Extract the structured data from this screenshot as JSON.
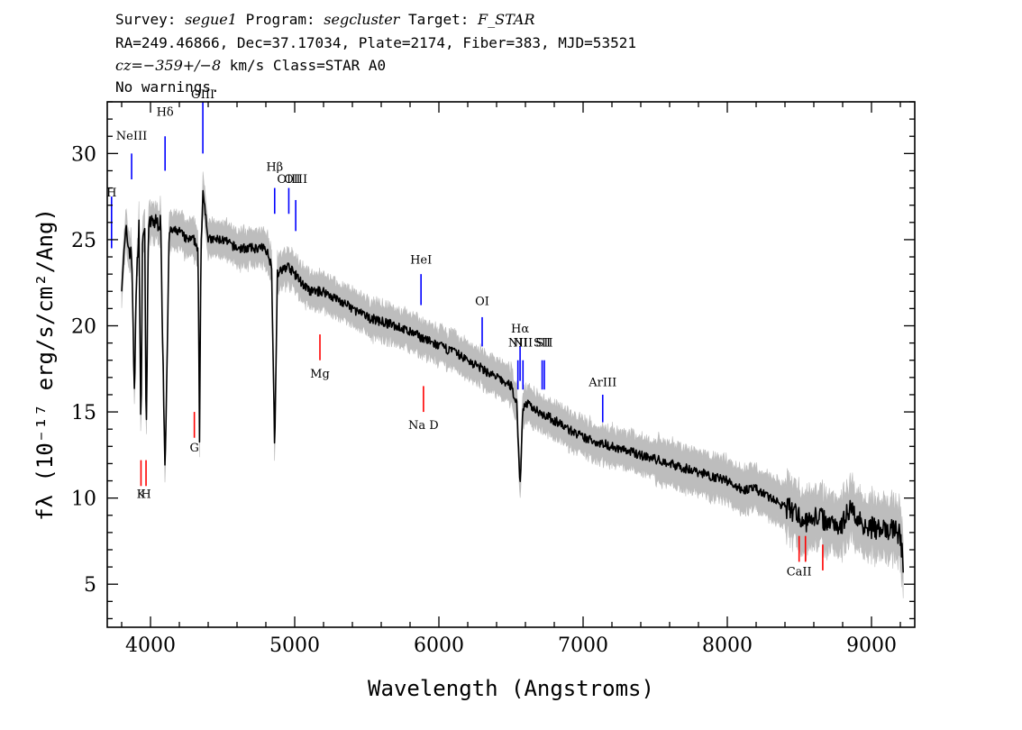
{
  "header": {
    "line1_prefix": "Survey: ",
    "survey": "segue1",
    "line1_mid": " Program: ",
    "program": "segcluster",
    "line1_mid2": " Target: ",
    "target": "F_STAR",
    "line2": "RA=249.46866, Dec=37.17034, Plate=2174, Fiber=383, MJD=53521",
    "cz": "cz=−359+/−8",
    "line3_suffix": " km/s Class=STAR A0",
    "line4": "No warnings."
  },
  "chart_data": {
    "type": "line",
    "xlabel": "Wavelength (Angstroms)",
    "ylabel": "fλ (10⁻¹⁷ erg/s/cm²/Ang)",
    "xlim": [
      3700,
      9300
    ],
    "ylim": [
      2.5,
      33.0
    ],
    "x_ticks": [
      4000,
      5000,
      6000,
      7000,
      8000,
      9000
    ],
    "y_ticks": [
      5,
      10,
      15,
      20,
      25,
      30
    ],
    "series": [
      {
        "role": "flux",
        "color": "#000000",
        "x": [
          3800,
          3830,
          3850,
          3870,
          3880,
          3889,
          3900,
          3920,
          3933,
          3945,
          3960,
          3970,
          3985,
          4000,
          4030,
          4070,
          4101,
          4130,
          4200,
          4250,
          4300,
          4330,
          4340,
          4350,
          4365,
          4400,
          4500,
          4600,
          4700,
          4800,
          4840,
          4861,
          4880,
          4950,
          5000,
          5100,
          5200,
          5300,
          5400,
          5500,
          5700,
          5890,
          5950,
          6100,
          6300,
          6400,
          6500,
          6540,
          6563,
          6580,
          6600,
          6700,
          6800,
          6900,
          7000,
          7200,
          7400,
          7600,
          7800,
          8000,
          8100,
          8200,
          8300,
          8400,
          8500,
          8542,
          8600,
          8662,
          8700,
          8800,
          8850,
          8900,
          8950,
          9000,
          9050,
          9100,
          9150,
          9180,
          9200,
          9220
        ],
        "y": [
          22.5,
          25.5,
          24.5,
          24.0,
          20.0,
          15.5,
          22.0,
          26.0,
          13.5,
          25.5,
          25.5,
          13.2,
          25.5,
          26.0,
          26.0,
          26.0,
          11.5,
          25.5,
          25.5,
          25.0,
          25.0,
          24.5,
          13.0,
          24.5,
          28.0,
          25.0,
          25.0,
          24.5,
          24.5,
          24.5,
          23.5,
          12.8,
          23.0,
          23.5,
          23.0,
          22.0,
          22.0,
          21.5,
          21.0,
          20.5,
          20.0,
          19.3,
          19.0,
          18.5,
          17.5,
          17.0,
          16.5,
          15.5,
          10.5,
          15.0,
          15.5,
          15.0,
          14.5,
          14.0,
          13.5,
          13.0,
          12.5,
          12.0,
          11.5,
          11.0,
          10.5,
          10.5,
          10.0,
          9.5,
          9.0,
          8.5,
          9.0,
          8.8,
          8.6,
          8.5,
          9.5,
          8.8,
          8.5,
          8.3,
          8.2,
          8.0,
          8.3,
          8.0,
          7.8,
          6.0
        ]
      }
    ],
    "line_markers": [
      {
        "label": "H",
        "x": 3730,
        "y_base": 24.5,
        "y_top": 27.5,
        "color": "#0000ff",
        "label_y": 27.5
      },
      {
        "label": "NeIII",
        "x": 3869,
        "y_base": 28.5,
        "y_top": 30.0,
        "color": "#0000ff",
        "label_y": 30.8
      },
      {
        "label": "Hδ",
        "x": 4101,
        "y_base": 29.0,
        "y_top": 31.0,
        "color": "#0000ff",
        "label_y": 32.2
      },
      {
        "label": "OIII",
        "x": 4363,
        "y_base": 30.0,
        "y_top": 33.0,
        "color": "#0000ff",
        "label_y": 33.2
      },
      {
        "label": "Hβ",
        "x": 4861,
        "y_base": 26.5,
        "y_top": 28.0,
        "color": "#0000ff",
        "label_y": 29.0
      },
      {
        "label": "OIII",
        "x": 4959,
        "y_base": 26.5,
        "y_top": 28.0,
        "color": "#0000ff",
        "label_y": 28.3
      },
      {
        "label": "OIII",
        "x": 5007,
        "y_base": 25.5,
        "y_top": 27.3,
        "color": "#0000ff",
        "label_y": 28.3
      },
      {
        "label": "HeI",
        "x": 5876,
        "y_base": 21.2,
        "y_top": 23.0,
        "color": "#0000ff",
        "label_y": 23.6
      },
      {
        "label": "OI",
        "x": 6300,
        "y_base": 18.8,
        "y_top": 20.5,
        "color": "#0000ff",
        "label_y": 21.2
      },
      {
        "label": "NII",
        "x": 6548,
        "y_base": 16.3,
        "y_top": 18.0,
        "color": "#0000ff",
        "label_y": 18.8
      },
      {
        "label": "Hα",
        "x": 6563,
        "y_base": 16.8,
        "y_top": 18.8,
        "color": "#0000ff",
        "label_y": 19.6
      },
      {
        "label": "NII",
        "x": 6583,
        "y_base": 16.3,
        "y_top": 18.0,
        "color": "#0000ff",
        "label_y": 18.8
      },
      {
        "label": "SII",
        "x": 6716,
        "y_base": 16.3,
        "y_top": 18.0,
        "color": "#0000ff",
        "label_y": 18.8
      },
      {
        "label": "SII",
        "x": 6731,
        "y_base": 16.3,
        "y_top": 18.0,
        "color": "#0000ff",
        "label_y": 18.8
      },
      {
        "label": "ArIII",
        "x": 7136,
        "y_base": 14.4,
        "y_top": 16.0,
        "color": "#0000ff",
        "label_y": 16.5
      },
      {
        "label": "Mg",
        "x": 5175,
        "y_base": 18.0,
        "y_top": 19.5,
        "color": "#ff0000",
        "label_y": 17.0
      },
      {
        "label": "Na D",
        "x": 5893,
        "y_base": 15.0,
        "y_top": 16.5,
        "color": "#ff0000",
        "label_y": 14.0
      },
      {
        "label": "G",
        "x": 4304,
        "y_base": 13.5,
        "y_top": 15.0,
        "color": "#ff0000",
        "label_y": 12.7
      },
      {
        "label": "K",
        "x": 3934,
        "y_base": 10.7,
        "y_top": 12.2,
        "color": "#ff0000",
        "label_y": 10.0
      },
      {
        "label": "H",
        "x": 3969,
        "y_base": 10.7,
        "y_top": 12.2,
        "color": "#ff0000",
        "label_y": 10.0
      },
      {
        "label": "CaII",
        "x": 8498,
        "y_base": 6.3,
        "y_top": 7.8,
        "color": "#ff0000",
        "label_y": 5.5
      },
      {
        "label": "",
        "x": 8542,
        "y_base": 6.3,
        "y_top": 7.8,
        "color": "#ff0000",
        "label_y": 5.5
      },
      {
        "label": "",
        "x": 8662,
        "y_base": 5.8,
        "y_top": 7.3,
        "color": "#ff0000",
        "label_y": 5.5
      }
    ],
    "colors": {
      "flux": "#000000",
      "error_band": "#bdbdbd",
      "emission": "#0000ff",
      "absorption": "#ff0000"
    }
  }
}
